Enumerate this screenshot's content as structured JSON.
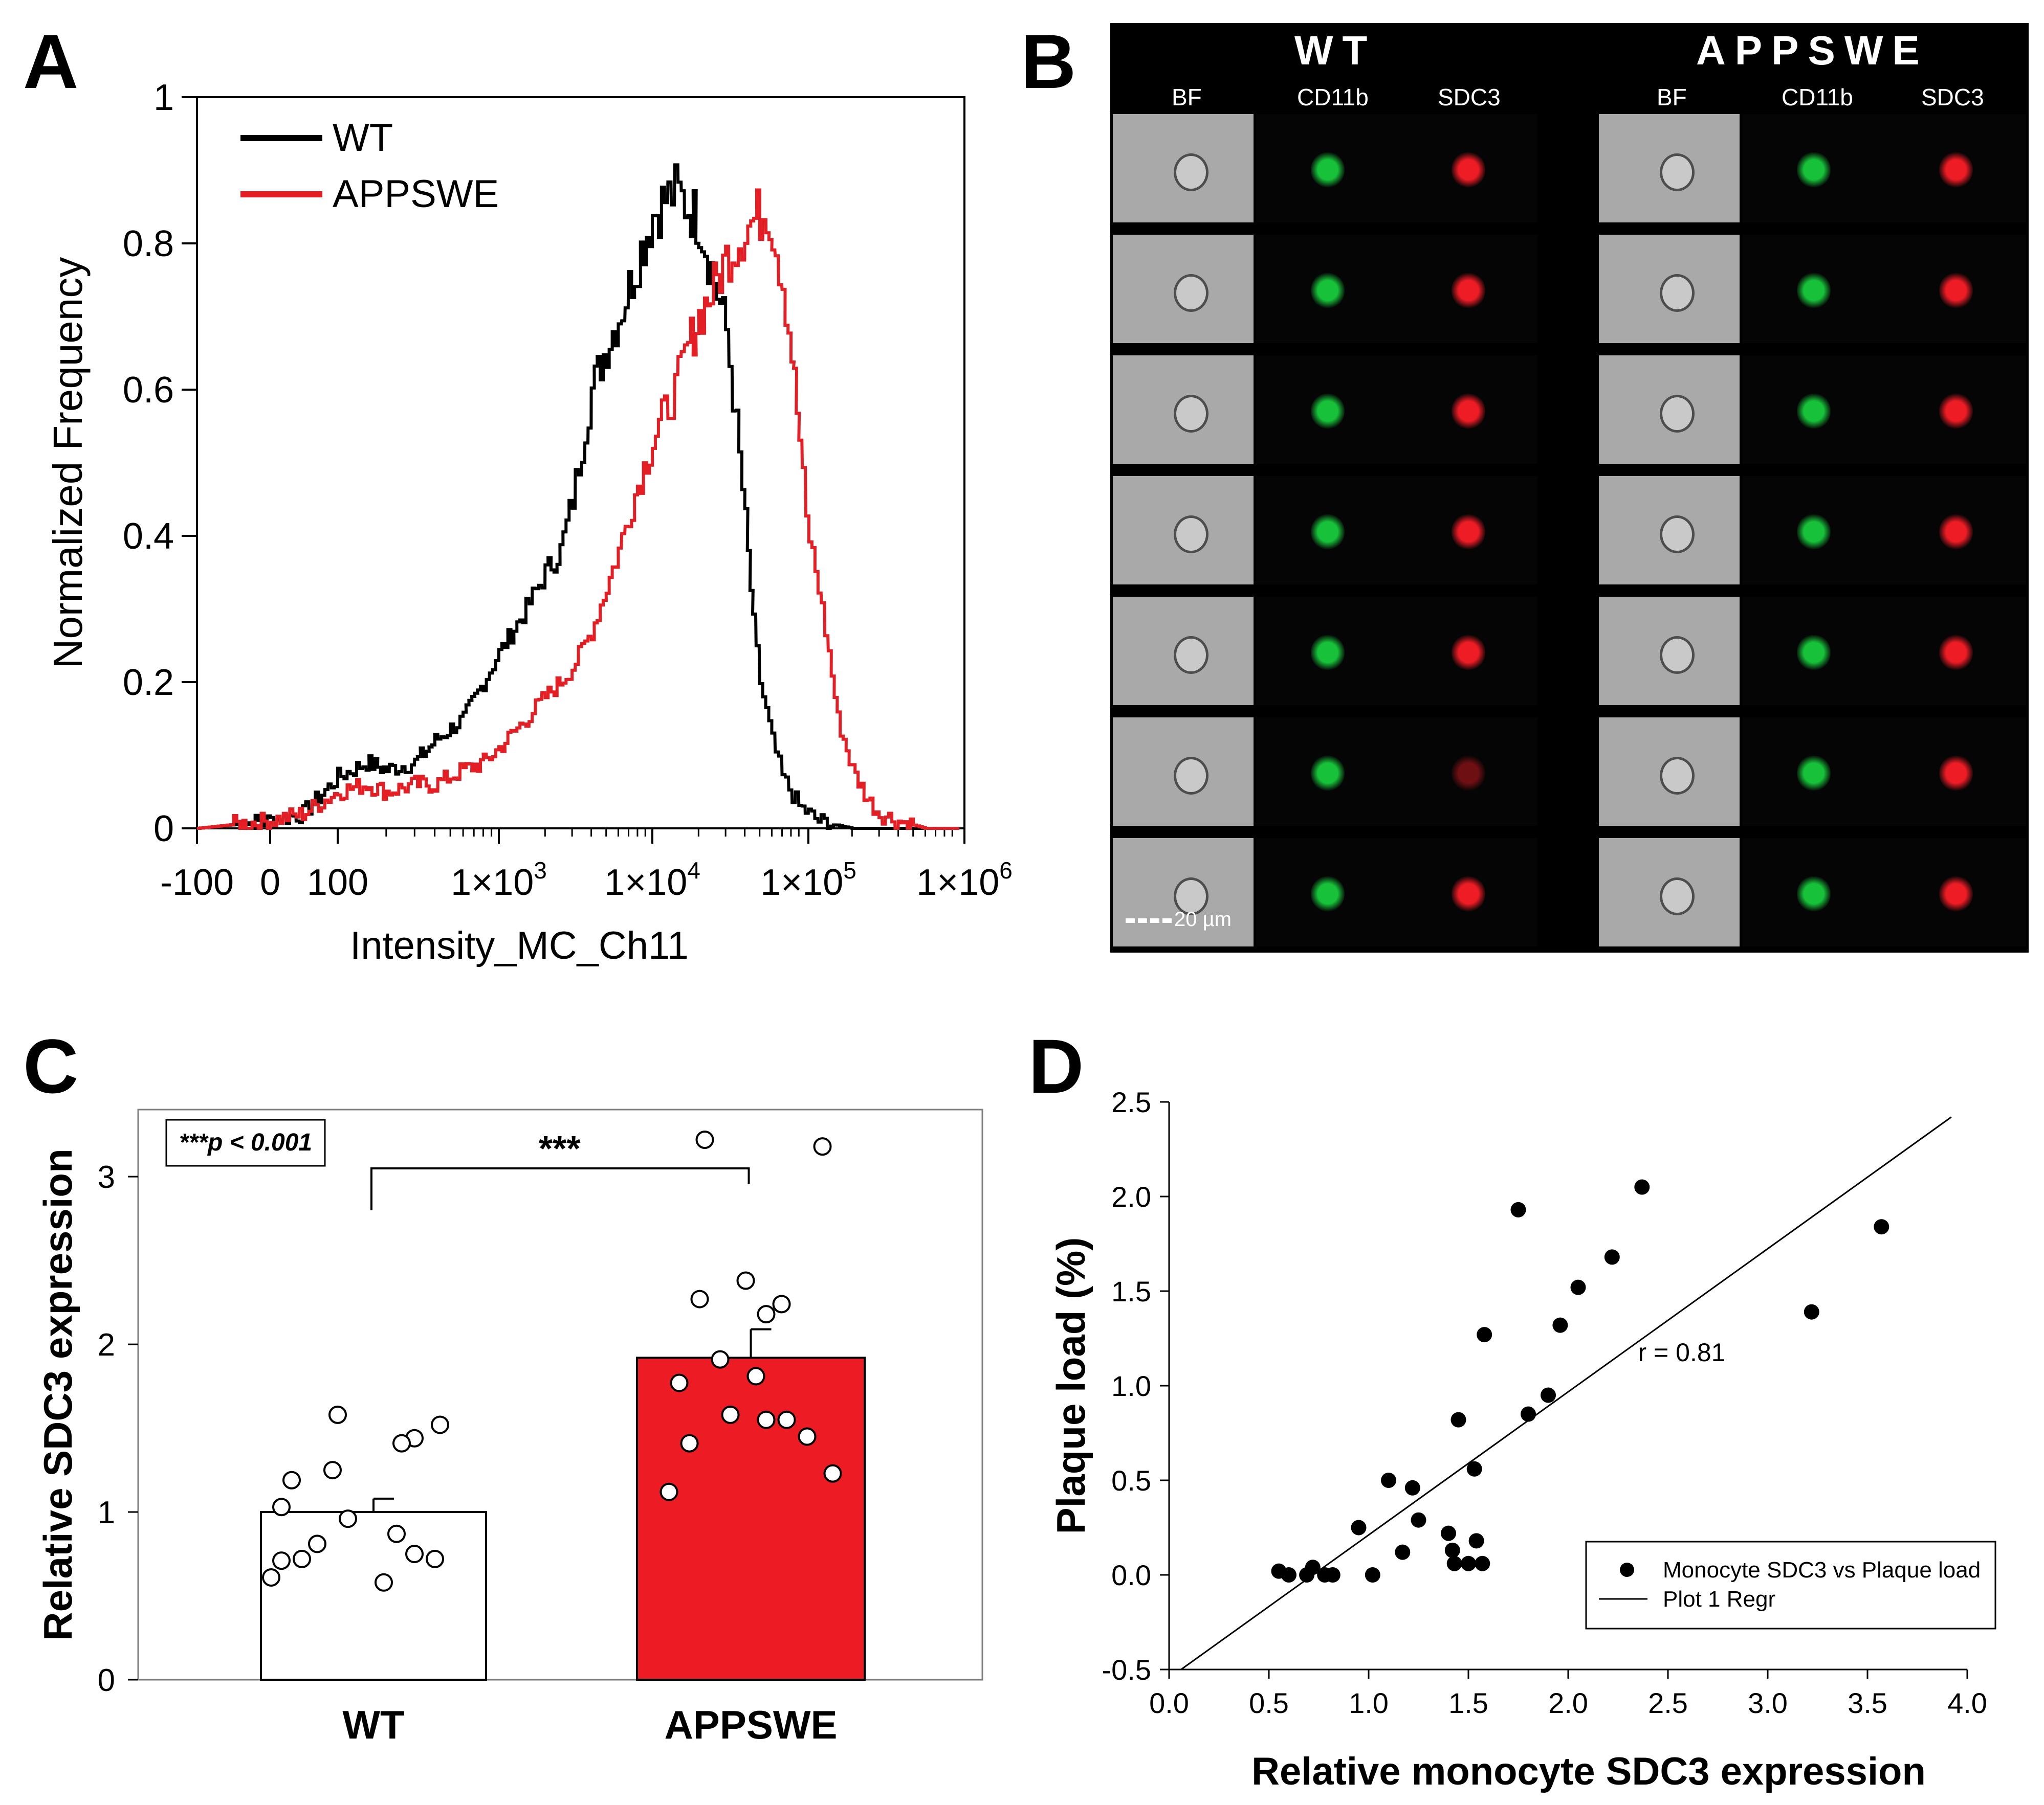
{
  "panel_labels": {
    "a": "A",
    "b": "B",
    "c": "C",
    "d": "D"
  },
  "colors": {
    "wt": "#000000",
    "app": "#e31e24",
    "bar_red": "#ed1c24",
    "green": "#17c23a",
    "red_stain": "#ee1c25"
  },
  "chart_data": [
    {
      "id": "A",
      "type": "line",
      "title": "",
      "xlabel": "Intensity_MC_Ch11",
      "ylabel": "Normalized Frequency",
      "xscale": "hyperlog",
      "ylim": [
        0,
        1
      ],
      "x_tick_labels": [
        "-100",
        "0",
        "100",
        "1×10",
        "1×10",
        "1×10",
        "1×10"
      ],
      "x_tick_exponents": [
        "",
        "",
        "",
        "3",
        "4",
        "5",
        "6"
      ],
      "y_tick_labels": [
        "0",
        "0.2",
        "0.4",
        "0.6",
        "0.8",
        "1"
      ],
      "legend": [
        "WT",
        "APPSWE"
      ],
      "legend_position": "top-left",
      "series": [
        {
          "name": "WT",
          "color": "#000000",
          "points": [
            [
              -100,
              0
            ],
            [
              0,
              0.01
            ],
            [
              50,
              0.02
            ],
            [
              100,
              0.07
            ],
            [
              150,
              0.09
            ],
            [
              200,
              0.08
            ],
            [
              300,
              0.09
            ],
            [
              400,
              0.12
            ],
            [
              600,
              0.15
            ],
            [
              800,
              0.2
            ],
            [
              1000,
              0.24
            ],
            [
              1500,
              0.3
            ],
            [
              2000,
              0.35
            ],
            [
              2500,
              0.38
            ],
            [
              3000,
              0.45
            ],
            [
              4000,
              0.6
            ],
            [
              5000,
              0.66
            ],
            [
              6000,
              0.7
            ],
            [
              7000,
              0.74
            ],
            [
              8000,
              0.78
            ],
            [
              10000,
              0.84
            ],
            [
              12000,
              0.86
            ],
            [
              14000,
              0.87
            ],
            [
              17000,
              0.85
            ],
            [
              20000,
              0.83
            ],
            [
              25000,
              0.75
            ],
            [
              30000,
              0.68
            ],
            [
              35000,
              0.55
            ],
            [
              40000,
              0.42
            ],
            [
              45000,
              0.28
            ],
            [
              50000,
              0.2
            ],
            [
              60000,
              0.12
            ],
            [
              70000,
              0.07
            ],
            [
              90000,
              0.03
            ],
            [
              120000,
              0.01
            ],
            [
              200000,
              0
            ],
            [
              1000000,
              0
            ]
          ]
        },
        {
          "name": "APPSWE",
          "color": "#e31e24",
          "points": [
            [
              -100,
              0
            ],
            [
              0,
              0.01
            ],
            [
              50,
              0.02
            ],
            [
              100,
              0.05
            ],
            [
              150,
              0.06
            ],
            [
              200,
              0.05
            ],
            [
              300,
              0.06
            ],
            [
              400,
              0.06
            ],
            [
              600,
              0.08
            ],
            [
              800,
              0.09
            ],
            [
              1000,
              0.11
            ],
            [
              1500,
              0.15
            ],
            [
              2000,
              0.18
            ],
            [
              2500,
              0.2
            ],
            [
              3000,
              0.22
            ],
            [
              4000,
              0.27
            ],
            [
              5000,
              0.33
            ],
            [
              6000,
              0.38
            ],
            [
              7000,
              0.43
            ],
            [
              8000,
              0.47
            ],
            [
              10000,
              0.53
            ],
            [
              12000,
              0.57
            ],
            [
              14000,
              0.6
            ],
            [
              17000,
              0.66
            ],
            [
              20000,
              0.7
            ],
            [
              25000,
              0.74
            ],
            [
              30000,
              0.78
            ],
            [
              40000,
              0.82
            ],
            [
              50000,
              0.84
            ],
            [
              55000,
              0.85
            ],
            [
              60000,
              0.82
            ],
            [
              70000,
              0.75
            ],
            [
              80000,
              0.65
            ],
            [
              90000,
              0.53
            ],
            [
              100000,
              0.42
            ],
            [
              120000,
              0.33
            ],
            [
              140000,
              0.24
            ],
            [
              160000,
              0.15
            ],
            [
              200000,
              0.08
            ],
            [
              250000,
              0.04
            ],
            [
              300000,
              0.02
            ],
            [
              400000,
              0.01
            ],
            [
              600000,
              0
            ],
            [
              1000000,
              0
            ]
          ]
        }
      ]
    },
    {
      "id": "C",
      "type": "bar",
      "title": "",
      "xlabel": "",
      "ylabel": "Relative SDC3 expression",
      "ylim": [
        0,
        3.4
      ],
      "y_tick_labels": [
        "0",
        "1",
        "2",
        "3"
      ],
      "categories": [
        "WT",
        "APPSWE"
      ],
      "values": [
        1.0,
        1.92
      ],
      "errors": [
        0.08,
        0.17
      ],
      "significance": "***",
      "annotation": "***p < 0.001",
      "points": [
        {
          "group": "WT",
          "values": [
            1.58,
            1.44,
            1.41,
            1.52,
            1.19,
            1.25,
            1.03,
            0.96,
            0.87,
            0.81,
            0.72,
            0.71,
            0.75,
            0.72,
            0.61,
            0.58
          ]
        },
        {
          "group": "APPSWE",
          "values": [
            3.22,
            3.18,
            2.38,
            2.27,
            2.24,
            2.18,
            1.91,
            1.81,
            1.77,
            1.58,
            1.55,
            1.55,
            1.45,
            1.41,
            1.23,
            1.12
          ]
        }
      ]
    },
    {
      "id": "D",
      "type": "scatter",
      "title": "",
      "xlabel": "Relative monocyte SDC3 expression",
      "ylabel": "Plaque load (%)",
      "xlim": [
        0.0,
        4.0
      ],
      "ylim": [
        -0.5,
        2.5
      ],
      "x_tick_labels": [
        "0.0",
        "0.5",
        "1.0",
        "1.5",
        "2.0",
        "2.5",
        "3.0",
        "3.5",
        "4.0"
      ],
      "y_tick_labels": [
        "-0.5",
        "0.0",
        "0.5",
        "1.0",
        "1.5",
        "2.0",
        "2.5"
      ],
      "legend": [
        "Monocyte SDC3 vs Plaque load",
        "Plot 1 Regr"
      ],
      "legend_position": "bottom-right",
      "annotation": "r = 0.81",
      "regression": {
        "x": [
          0.06,
          3.92
        ],
        "y": [
          -0.5,
          2.42
        ]
      },
      "x": [
        0.55,
        0.6,
        0.69,
        0.72,
        0.78,
        0.82,
        0.95,
        1.02,
        1.1,
        1.17,
        1.22,
        1.25,
        1.4,
        1.42,
        1.43,
        1.45,
        1.5,
        1.53,
        1.54,
        1.57,
        1.58,
        1.75,
        1.8,
        1.9,
        1.96,
        2.05,
        2.22,
        2.37,
        3.22,
        3.57
      ],
      "y": [
        0.02,
        0.0,
        0.0,
        0.04,
        0.0,
        0.0,
        0.25,
        0.0,
        0.5,
        0.12,
        0.46,
        0.29,
        0.22,
        0.13,
        0.06,
        0.82,
        0.06,
        0.56,
        0.18,
        0.06,
        1.27,
        1.93,
        0.85,
        0.95,
        1.32,
        1.52,
        1.68,
        2.05,
        1.39,
        1.84
      ]
    }
  ],
  "panelB": {
    "groups": [
      "WT",
      "APPSWE"
    ],
    "channels": [
      "BF",
      "CD11b",
      "SDC3"
    ],
    "scale_bar": "20 µm",
    "rows": 7
  }
}
